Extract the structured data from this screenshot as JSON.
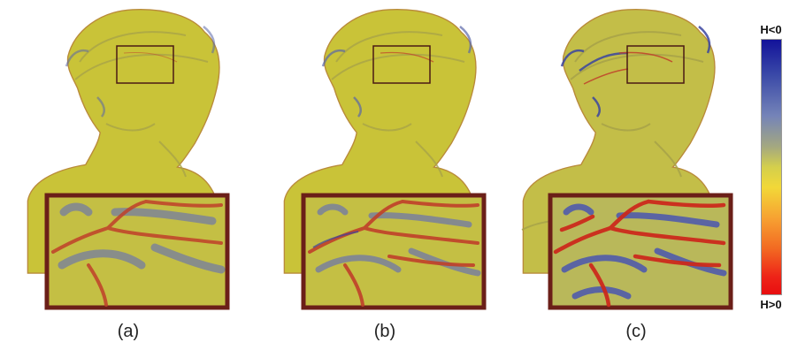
{
  "panels": [
    {
      "caption": "(a)"
    },
    {
      "caption": "(b)"
    },
    {
      "caption": "(c)"
    }
  ],
  "colorbar": {
    "top_label": "H<0",
    "bottom_label": "H>0",
    "colors": {
      "negative": "#12129a",
      "zero": "#d4cf4c",
      "positive": "#e80e10"
    }
  },
  "colors": {
    "surface": "#c9c338",
    "surface_shade": "#a9a448",
    "ridge": "#c0402a",
    "valley": "#5a66a8",
    "inset_frame": "#6b1f18"
  }
}
